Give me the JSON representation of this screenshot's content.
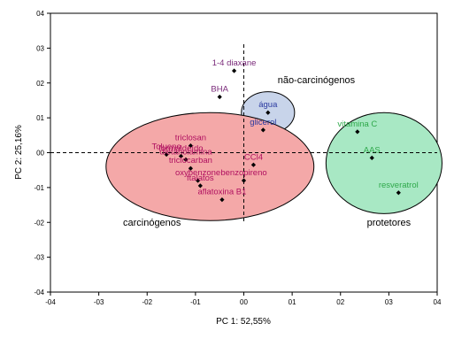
{
  "chart_data": {
    "type": "scatter",
    "title": "",
    "xlabel": "PC 1: 52,55%",
    "ylabel": "PC 2: 25,16%",
    "xlim": [
      -0.4,
      0.4
    ],
    "ylim": [
      -0.4,
      0.4
    ],
    "x_ticks": [
      "-04",
      "-03",
      "-02",
      "-01",
      "00",
      "01",
      "02",
      "03",
      "04"
    ],
    "y_ticks": [
      "04",
      "03",
      "02",
      "01",
      "00",
      "-01",
      "-02",
      "-03",
      "-04"
    ],
    "reference_lines": {
      "x": 0,
      "y": 0,
      "style": "dashed"
    },
    "points": [
      {
        "label": "1-4 diaxane",
        "x": -0.02,
        "y": 0.235,
        "color": "#7a2a7a"
      },
      {
        "label": "BHA",
        "x": -0.05,
        "y": 0.16,
        "color": "#7a2a7a"
      },
      {
        "label": "água",
        "x": 0.05,
        "y": 0.115,
        "color": "#2a3aa0"
      },
      {
        "label": "glicerol",
        "x": 0.04,
        "y": 0.065,
        "color": "#2a3aa0"
      },
      {
        "label": "triclosan",
        "x": -0.11,
        "y": 0.02,
        "color": "#b01060"
      },
      {
        "label": "Tolueno",
        "x": -0.16,
        "y": -0.005,
        "color": "#b01060"
      },
      {
        "label": "formaldeído",
        "x": -0.13,
        "y": -0.01,
        "color": "#b01060"
      },
      {
        "label": "dietanolamina",
        "x": -0.12,
        "y": -0.02,
        "color": "#b01060"
      },
      {
        "label": "CCl4",
        "x": 0.02,
        "y": -0.035,
        "color": "#b01060"
      },
      {
        "label": "triclocarban",
        "x": -0.11,
        "y": -0.045,
        "color": "#b01060"
      },
      {
        "label": "benzopireno",
        "x": 0.0,
        "y": -0.08,
        "color": "#b01060"
      },
      {
        "label": "oxybenzone",
        "x": -0.095,
        "y": -0.08,
        "color": "#b01060"
      },
      {
        "label": "ftalatos",
        "x": -0.09,
        "y": -0.095,
        "color": "#b01060"
      },
      {
        "label": "aflatoxina B1",
        "x": -0.045,
        "y": -0.135,
        "color": "#b01060"
      },
      {
        "label": "vitamina C",
        "x": 0.235,
        "y": 0.06,
        "color": "#2ea84a"
      },
      {
        "label": "AAS",
        "x": 0.265,
        "y": -0.015,
        "color": "#2ea84a"
      },
      {
        "label": "resveratrol",
        "x": 0.32,
        "y": -0.115,
        "color": "#2ea84a"
      }
    ],
    "groups": [
      {
        "label": "não-carcinógenos",
        "fill": "#c8d4ea",
        "center": [
          0.05,
          0.115
        ],
        "radii": [
          0.055,
          0.06
        ]
      },
      {
        "label": "carcinógenos",
        "fill": "#f4a8a8",
        "center": [
          -0.07,
          -0.04
        ],
        "radii": [
          0.215,
          0.155
        ]
      },
      {
        "label": "protetores",
        "fill": "#a8e8c4",
        "center": [
          0.29,
          -0.03
        ],
        "radii": [
          0.12,
          0.145
        ]
      }
    ]
  }
}
